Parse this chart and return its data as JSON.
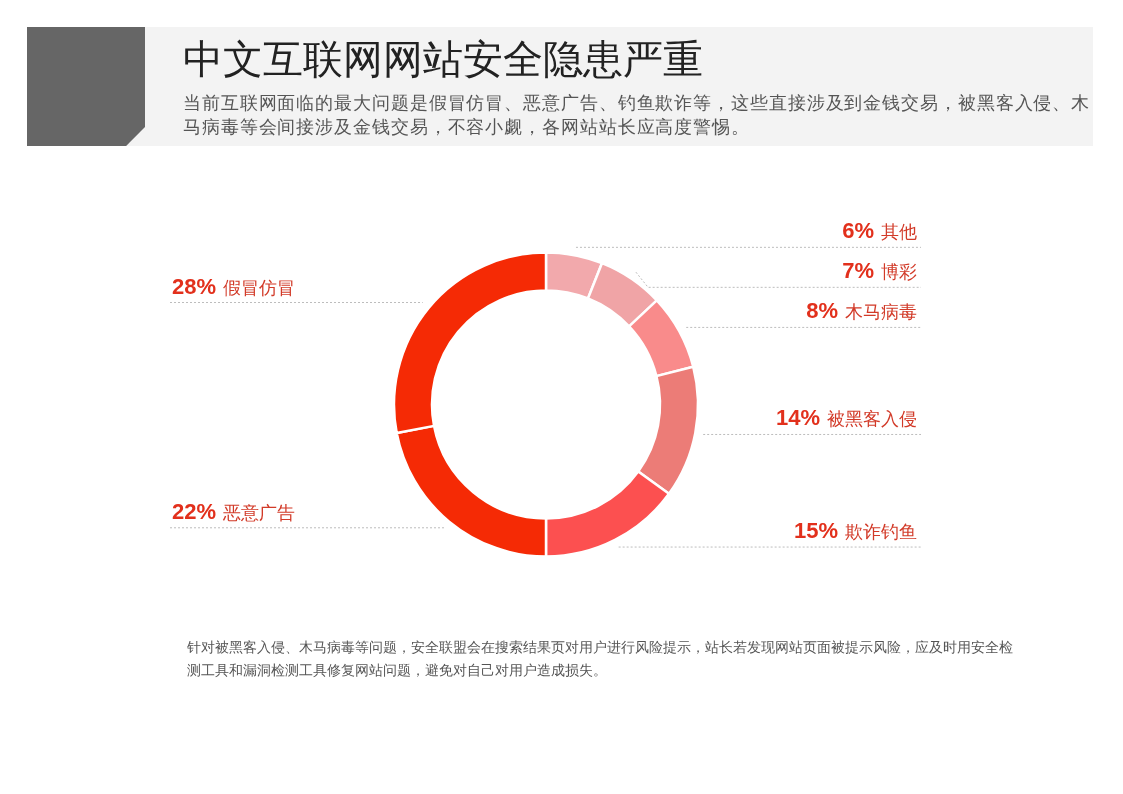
{
  "chart_data": {
    "type": "donut",
    "title": "中文互联网网站安全隐患严重",
    "subtitle": "当前互联网面临的最大问题是假冒仿冒、恶意广告、钓鱼欺诈等，这些直接涉及到金钱交易，被黑客入侵、木马病毒等会间接涉及金钱交易，不容小觑，各网站站长应高度警惕。",
    "categories": [
      "其他",
      "博彩",
      "木马病毒",
      "被黑客入侵",
      "欺诈钓鱼",
      "恶意广告",
      "假冒仿冒"
    ],
    "values": [
      6,
      7,
      8,
      14,
      15,
      22,
      28
    ],
    "value_labels": [
      "6%",
      "7%",
      "8%",
      "14%",
      "15%",
      "22%",
      "28%"
    ],
    "colors": [
      "#f2a9ac",
      "#f0a4a6",
      "#f98b8b",
      "#ec7c77",
      "#fc5050",
      "#f52a05",
      "#f52a05"
    ],
    "annotations": [
      "针对被黑客入侵、木马病毒等问题，安全联盟会在搜索结果页对用户进行风险提示，站长若发现网站页面被提示风险，应及时用安全检测工具和漏洞检测工具修复网站问题，避免对自己对用户造成损失。"
    ]
  }
}
